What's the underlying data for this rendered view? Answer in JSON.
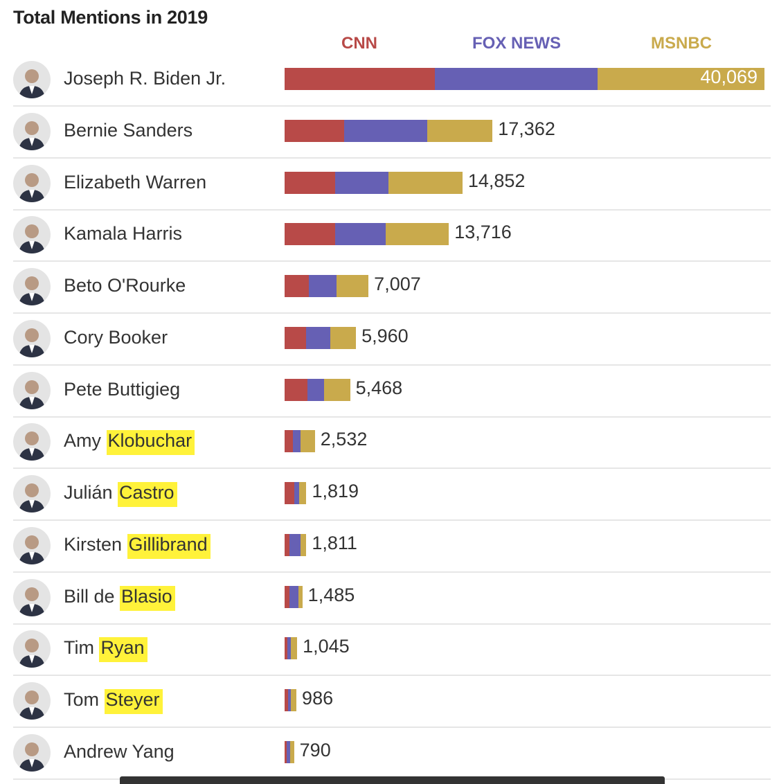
{
  "chart_data": {
    "type": "bar",
    "stacked": true,
    "orientation": "horizontal",
    "title": "Total Mentions in 2019",
    "legend_placement": "top",
    "series": [
      {
        "name": "CNN",
        "color": "#b84a48"
      },
      {
        "name": "FOX NEWS",
        "color": "#6660b4"
      },
      {
        "name": "MSNBC",
        "color": "#c9aa4c"
      }
    ],
    "rows": [
      {
        "first": "Joseph R. Biden Jr.",
        "last": "",
        "highlight": false,
        "total": 40069,
        "label": "40,069",
        "values": [
          12550,
          13590,
          13929
        ]
      },
      {
        "first": "Bernie Sanders",
        "last": "",
        "highlight": false,
        "total": 17362,
        "label": "17,362",
        "values": [
          4970,
          6940,
          5452
        ]
      },
      {
        "first": "Elizabeth Warren",
        "last": "",
        "highlight": false,
        "total": 14852,
        "label": "14,852",
        "values": [
          4220,
          4450,
          6182
        ]
      },
      {
        "first": "Kamala Harris",
        "last": "",
        "highlight": false,
        "total": 13716,
        "label": "13,716",
        "values": [
          4220,
          4220,
          5276
        ]
      },
      {
        "first": "Beto O'Rourke",
        "last": "",
        "highlight": false,
        "total": 7007,
        "label": "7,007",
        "values": [
          2020,
          2310,
          2677
        ]
      },
      {
        "first": "Cory Booker",
        "last": "",
        "highlight": false,
        "total": 5960,
        "label": "5,960",
        "values": [
          1790,
          2020,
          2150
        ]
      },
      {
        "first": "Pete Buttigieg",
        "last": "",
        "highlight": false,
        "total": 5468,
        "label": "5,468",
        "values": [
          1910,
          1390,
          2168
        ]
      },
      {
        "first": "Amy ",
        "last": "Klobuchar",
        "highlight": true,
        "total": 2532,
        "label": "2,532",
        "values": [
          690,
          640,
          1202
        ]
      },
      {
        "first": "Julián ",
        "last": "Castro",
        "highlight": true,
        "total": 1819,
        "label": "1,819",
        "values": [
          810,
          400,
          609
        ]
      },
      {
        "first": "Kirsten ",
        "last": "Gillibrand",
        "highlight": true,
        "total": 1811,
        "label": "1,811",
        "values": [
          400,
          920,
          491
        ]
      },
      {
        "first": "Bill de ",
        "last": "Blasio",
        "highlight": true,
        "total": 1485,
        "label": "1,485",
        "values": [
          400,
          750,
          335
        ]
      },
      {
        "first": "Tim ",
        "last": "Ryan",
        "highlight": true,
        "total": 1045,
        "label": "1,045",
        "values": [
          230,
          290,
          525
        ]
      },
      {
        "first": "Tom ",
        "last": "Steyer",
        "highlight": true,
        "total": 986,
        "label": "986",
        "values": [
          290,
          230,
          466
        ]
      },
      {
        "first": "Andrew Yang",
        "last": "",
        "highlight": false,
        "total": 790,
        "label": "790",
        "values": [
          175,
          290,
          325
        ]
      }
    ],
    "xlim": [
      0,
      40069
    ]
  }
}
